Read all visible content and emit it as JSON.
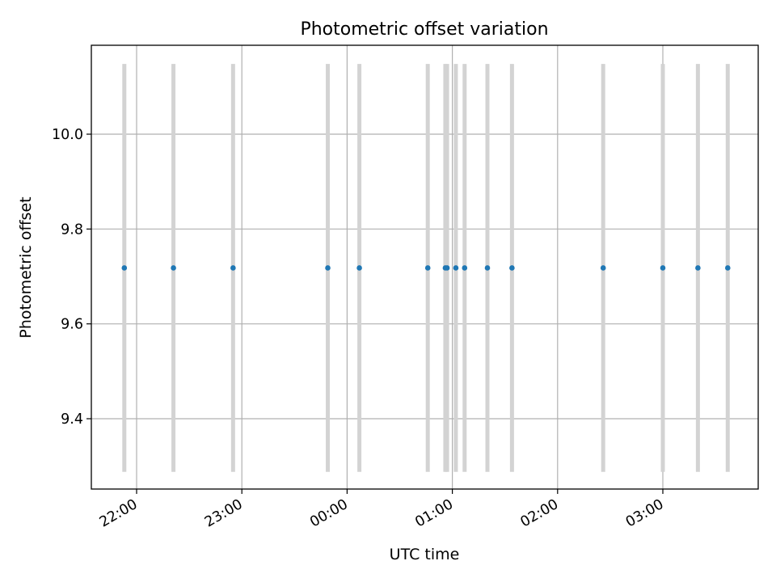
{
  "chart_data": {
    "type": "scatter",
    "title": "Photometric offset variation",
    "xlabel": "UTC time",
    "ylabel": "Photometric offset",
    "x_format": "HH:MM",
    "xticks": [
      "22:00",
      "23:00",
      "00:00",
      "01:00",
      "02:00",
      "03:00"
    ],
    "yticks": [
      "9.4",
      "9.6",
      "9.8",
      "10.0"
    ],
    "grid": true,
    "error_bar_color": "#d3d3d3",
    "marker_color": "#1f77b4",
    "points": [
      {
        "x": "21:53",
        "y": 9.718,
        "yerr": 0.43
      },
      {
        "x": "22:21",
        "y": 9.718,
        "yerr": 0.43
      },
      {
        "x": "22:55",
        "y": 9.718,
        "yerr": 0.43
      },
      {
        "x": "23:49",
        "y": 9.718,
        "yerr": 0.43
      },
      {
        "x": "00:07",
        "y": 9.718,
        "yerr": 0.43
      },
      {
        "x": "00:46",
        "y": 9.718,
        "yerr": 0.43
      },
      {
        "x": "00:56",
        "y": 9.718,
        "yerr": 0.43
      },
      {
        "x": "00:57",
        "y": 9.718,
        "yerr": 0.43
      },
      {
        "x": "01:02",
        "y": 9.718,
        "yerr": 0.43
      },
      {
        "x": "01:07",
        "y": 9.718,
        "yerr": 0.43
      },
      {
        "x": "01:20",
        "y": 9.718,
        "yerr": 0.43
      },
      {
        "x": "01:34",
        "y": 9.718,
        "yerr": 0.43
      },
      {
        "x": "02:26",
        "y": 9.718,
        "yerr": 0.43
      },
      {
        "x": "03:00",
        "y": 9.718,
        "yerr": 0.43
      },
      {
        "x": "03:20",
        "y": 9.718,
        "yerr": 0.43
      },
      {
        "x": "03:37",
        "y": 9.718,
        "yerr": 0.43
      }
    ]
  }
}
